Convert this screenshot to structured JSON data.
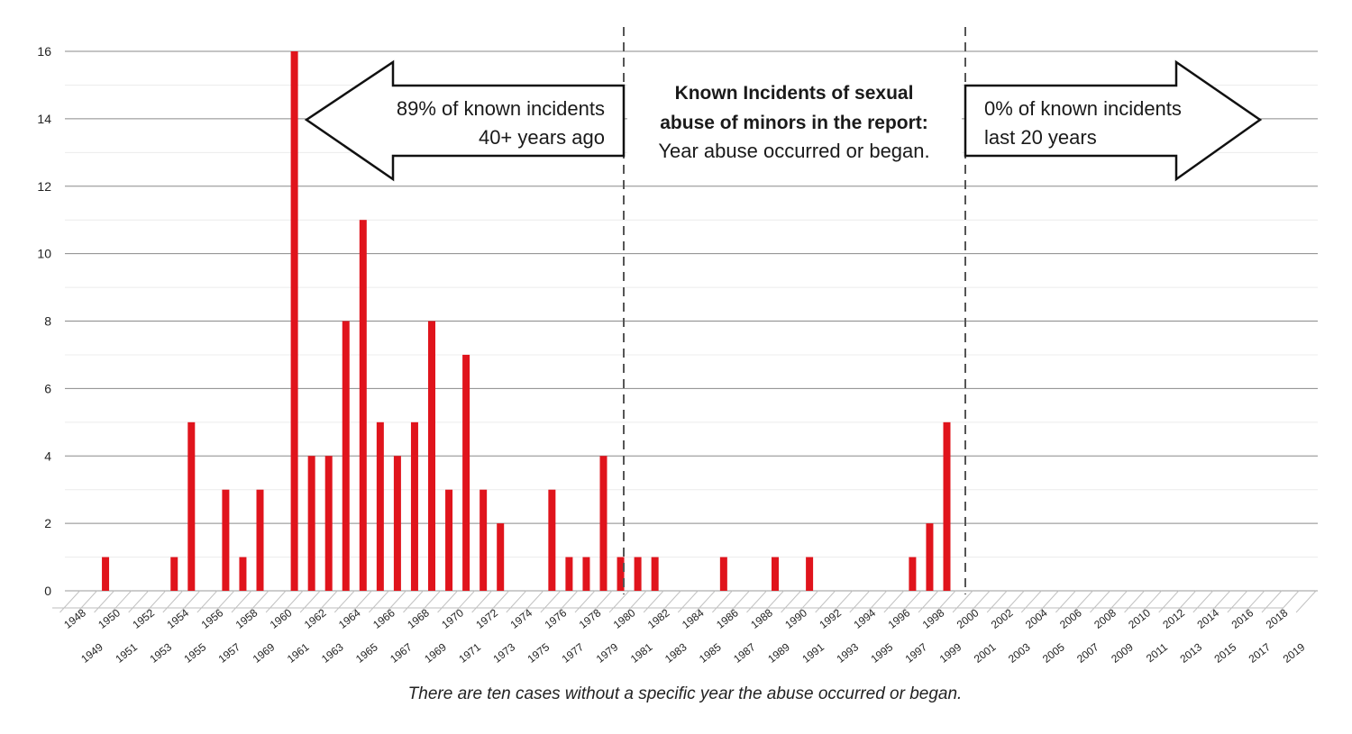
{
  "chart_data": {
    "type": "bar",
    "title": "",
    "xlabel": "",
    "ylabel": "",
    "ylim": [
      0,
      16
    ],
    "y_ticks": [
      0,
      2,
      4,
      6,
      8,
      10,
      12,
      14,
      16
    ],
    "grid": true,
    "bar_color": "#e0141c",
    "categories": [
      "1948",
      "1949",
      "1950",
      "1951",
      "1952",
      "1953",
      "1954",
      "1955",
      "1956",
      "1957",
      "1958",
      "1969",
      "1960",
      "1961",
      "1962",
      "1963",
      "1964",
      "1965",
      "1966",
      "1967",
      "1968",
      "1969",
      "1970",
      "1971",
      "1972",
      "1973",
      "1974",
      "1975",
      "1976",
      "1977",
      "1978",
      "1979",
      "1980",
      "1981",
      "1982",
      "1983",
      "1984",
      "1985",
      "1986",
      "1987",
      "1988",
      "1989",
      "1990",
      "1991",
      "1992",
      "1993",
      "1994",
      "1995",
      "1996",
      "1997",
      "1998",
      "1999",
      "2000",
      "2001",
      "2002",
      "2003",
      "2004",
      "2005",
      "2006",
      "2007",
      "2008",
      "2009",
      "2010",
      "2011",
      "2012",
      "2013",
      "2014",
      "2015",
      "2016",
      "2017",
      "2018",
      "2019"
    ],
    "values": [
      0,
      1,
      0,
      0,
      0,
      1,
      5,
      0,
      3,
      1,
      3,
      0,
      16,
      4,
      4,
      8,
      11,
      5,
      4,
      5,
      8,
      3,
      7,
      3,
      2,
      0,
      0,
      3,
      1,
      1,
      4,
      1,
      1,
      1,
      0,
      0,
      0,
      1,
      0,
      0,
      1,
      0,
      1,
      0,
      0,
      0,
      0,
      0,
      1,
      2,
      5,
      0,
      0,
      0,
      0,
      0,
      0,
      0,
      0,
      0,
      0,
      0,
      0,
      0,
      0,
      0,
      0,
      0,
      0,
      0,
      0,
      0
    ],
    "annotations": {
      "left_arrow": [
        "89% of known incidents",
        "40+ years ago"
      ],
      "center_bold": [
        "Known Incidents of sexual",
        "abuse of minors in the report:"
      ],
      "center_regular": "Year abuse occurred or began.",
      "right_arrow": [
        "0% of known incidents",
        "last 20 years"
      ]
    },
    "footnote": "There are ten cases without a specific year the abuse occurred or began."
  }
}
